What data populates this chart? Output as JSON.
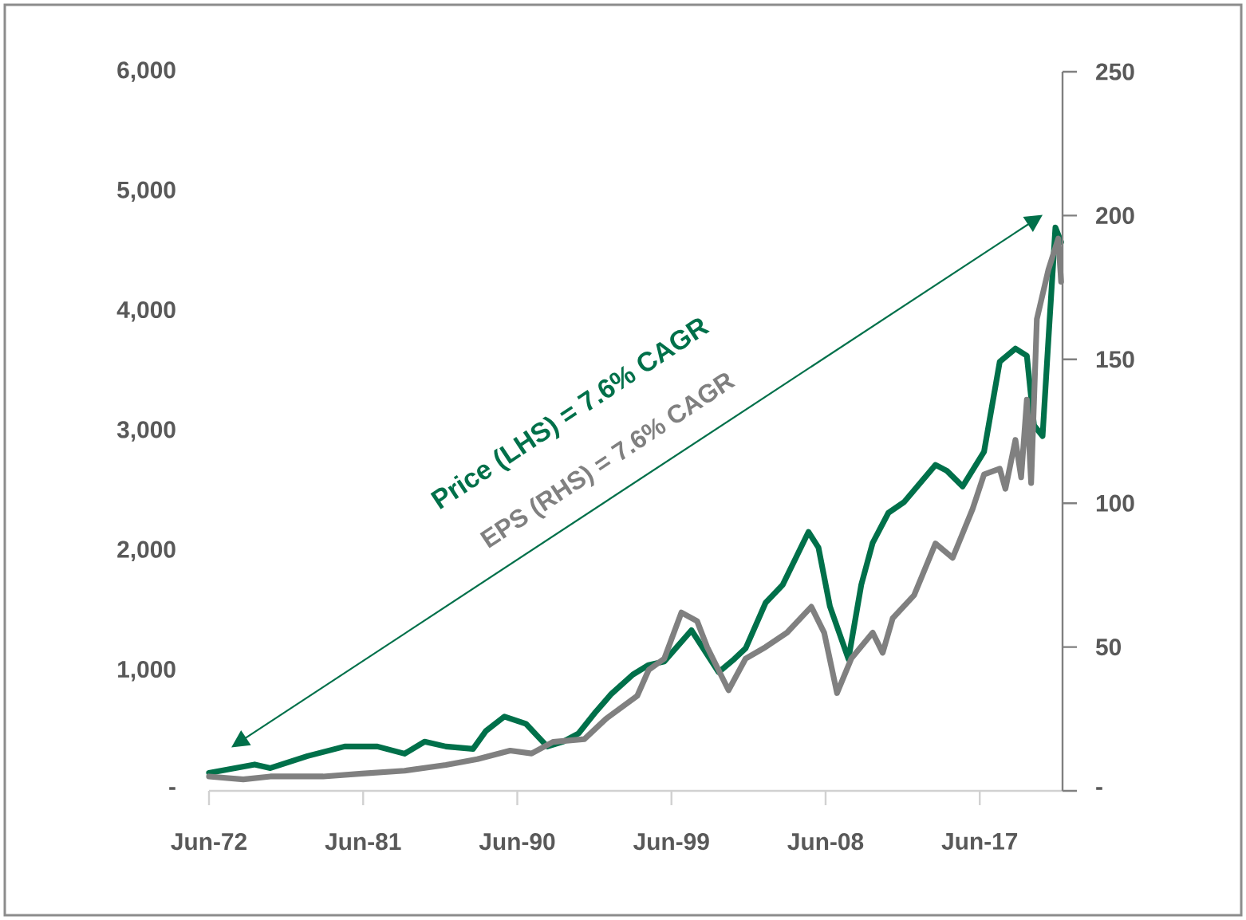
{
  "chart_data": {
    "type": "line",
    "xlim": [
      "1972-06",
      "2022-04"
    ],
    "xticks": [
      {
        "value": "1972-06",
        "label": "Jun-72"
      },
      {
        "value": "1981-06",
        "label": "Jun-81"
      },
      {
        "value": "1990-06",
        "label": "Jun-90"
      },
      {
        "value": "1999-06",
        "label": "Jun-99"
      },
      {
        "value": "2008-06",
        "label": "Jun-08"
      },
      {
        "value": "2017-06",
        "label": "Jun-17"
      }
    ],
    "ylim": [
      0,
      6000
    ],
    "yticks": [
      {
        "value": 0,
        "label": "-"
      },
      {
        "value": 1000,
        "label": "1,000"
      },
      {
        "value": 2000,
        "label": "2,000"
      },
      {
        "value": 3000,
        "label": "3,000"
      },
      {
        "value": 4000,
        "label": "4,000"
      },
      {
        "value": 5000,
        "label": "5,000"
      },
      {
        "value": 6000,
        "label": "6,000"
      }
    ],
    "y2lim": [
      0,
      250
    ],
    "y2ticks": [
      {
        "value": 0,
        "label": "-"
      },
      50,
      100,
      150,
      200,
      250
    ],
    "series": [
      {
        "color": "#00704a",
        "x": [
          "1972-06",
          "1975-02",
          "1976-01",
          "1978-03",
          "1980-05",
          "1982-04",
          "1983-11",
          "1985-01",
          "1986-04",
          "1987-11",
          "1988-08",
          "1989-09",
          "1990-12",
          "1992-03",
          "1993-02",
          "1994-01",
          "1995-01",
          "1995-12",
          "1997-03",
          "1998-02",
          "1999-01",
          "2000-08",
          "2002-03",
          "2003-02",
          "2003-10",
          "2004-12",
          "2005-12",
          "2007-06",
          "2008-01",
          "2008-09",
          "2009-10",
          "2010-07",
          "2011-03",
          "2012-02",
          "2013-01",
          "2014-11",
          "2015-07",
          "2016-06",
          "2017-09",
          "2018-08",
          "2019-07",
          "2020-03",
          "2020-08",
          "2021-02",
          "2021-07",
          "2021-11",
          "2022-03"
        ],
        "values": [
          150,
          220,
          190,
          290,
          370,
          370,
          310,
          410,
          370,
          350,
          500,
          620,
          560,
          370,
          410,
          480,
          660,
          810,
          970,
          1050,
          1080,
          1340,
          990,
          1100,
          1190,
          1570,
          1720,
          2160,
          2030,
          1540,
          1100,
          1720,
          2070,
          2320,
          2410,
          2720,
          2670,
          2540,
          2830,
          3580,
          3690,
          3630,
          3050,
          2960,
          3940,
          4700,
          4580
        ]
      },
      {
        "color": "#808080",
        "axis": "y2",
        "x": [
          "1972-06",
          "1974-06",
          "1976-01",
          "1979-02",
          "1981-05",
          "1983-11",
          "1986-04",
          "1988-02",
          "1990-01",
          "1991-04",
          "1992-07",
          "1994-05",
          "1995-08",
          "1997-06",
          "1998-02",
          "1999-01",
          "2000-01",
          "2000-12",
          "2001-07",
          "2002-10",
          "2003-10",
          "2004-12",
          "2006-03",
          "2007-08",
          "2008-05",
          "2009-02",
          "2009-12",
          "2011-03",
          "2011-10",
          "2012-05",
          "2013-08",
          "2014-11",
          "2015-11",
          "2017-01",
          "2017-09",
          "2018-08",
          "2018-12",
          "2019-07",
          "2019-11",
          "2020-03",
          "2020-06",
          "2020-10",
          "2021-06",
          "2022-01",
          "2022-03"
        ],
        "values": [
          5,
          4,
          5,
          5,
          6,
          7,
          9,
          11,
          14,
          13,
          17,
          18,
          25,
          33,
          42,
          46,
          62,
          59,
          50,
          35,
          46,
          50,
          55,
          64,
          55,
          34,
          46,
          55,
          48,
          60,
          68,
          86,
          81,
          98,
          110,
          112,
          105,
          122,
          109,
          136,
          107,
          164,
          181,
          192,
          177
        ]
      }
    ],
    "annotations": [
      "Price (LHS) = 7.6% CAGR",
      "EPS (RHS) = 7.6% CAGR"
    ]
  }
}
